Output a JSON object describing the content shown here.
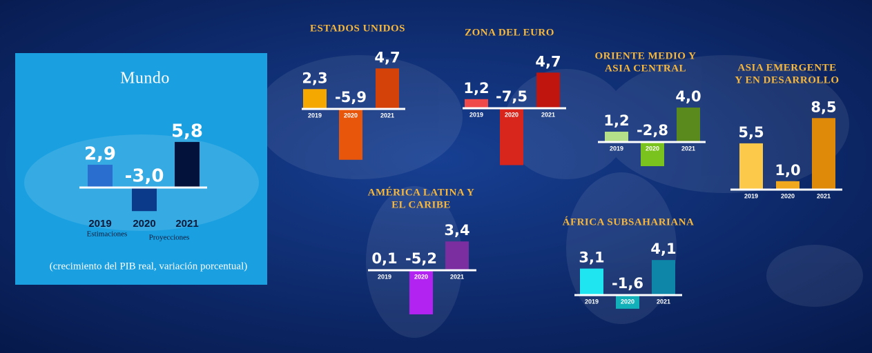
{
  "chart_data": [
    {
      "type": "bar",
      "title": [
        "Mundo"
      ],
      "subtitle": "(crecimiento del PIB real, variación porcentual)",
      "annotations": [
        "Estimaciones",
        "Proyecciones"
      ],
      "categories": [
        "2019",
        "2020",
        "2021"
      ],
      "values": [
        2.9,
        -3.0,
        5.8
      ],
      "value_labels": [
        "2,9",
        "-3,0",
        "5,8"
      ],
      "colors": [
        "#2a6fd0",
        "#0b3a8a",
        "#03123a"
      ]
    },
    {
      "type": "bar",
      "title": [
        "ESTADOS UNIDOS"
      ],
      "categories": [
        "2019",
        "2020",
        "2021"
      ],
      "values": [
        2.3,
        -5.9,
        4.7
      ],
      "value_labels": [
        "2,3",
        "-5,9",
        "4,7"
      ],
      "colors": [
        "#f5a800",
        "#e8560c",
        "#d4420a"
      ]
    },
    {
      "type": "bar",
      "title": [
        "ZONA DEL EURO"
      ],
      "categories": [
        "2019",
        "2020",
        "2021"
      ],
      "values": [
        1.2,
        -7.5,
        4.7
      ],
      "value_labels": [
        "1,2",
        "-7,5",
        "4,7"
      ],
      "colors": [
        "#f04a4a",
        "#d9261c",
        "#c0150f"
      ]
    },
    {
      "type": "bar",
      "title": [
        "ORIENTE MEDIO Y",
        "ASIA CENTRAL"
      ],
      "categories": [
        "2019",
        "2020",
        "2021"
      ],
      "values": [
        1.2,
        -2.8,
        4.0
      ],
      "value_labels": [
        "1,2",
        "-2,8",
        "4,0"
      ],
      "colors": [
        "#b5e08a",
        "#7ac21e",
        "#5a8a1e"
      ]
    },
    {
      "type": "bar",
      "title": [
        "ASIA EMERGENTE",
        "Y EN DESARROLLO"
      ],
      "categories": [
        "2019",
        "2020",
        "2021"
      ],
      "values": [
        5.5,
        1.0,
        8.5
      ],
      "value_labels": [
        "5,5",
        "1,0",
        "8,5"
      ],
      "colors": [
        "#fdc94a",
        "#f0a81e",
        "#e08a0a"
      ]
    },
    {
      "type": "bar",
      "title": [
        "AMÉRICA LATINA Y",
        "EL CARIBE"
      ],
      "categories": [
        "2019",
        "2020",
        "2021"
      ],
      "values": [
        0.1,
        -5.2,
        3.4
      ],
      "value_labels": [
        "0,1",
        "-5,2",
        "3,4"
      ],
      "colors": [
        "#d98af0",
        "#b222f0",
        "#7a2ea0"
      ]
    },
    {
      "type": "bar",
      "title": [
        "ÁFRICA SUBSAHARIANA"
      ],
      "categories": [
        "2019",
        "2020",
        "2021"
      ],
      "values": [
        3.1,
        -1.6,
        4.1
      ],
      "value_labels": [
        "3,1",
        "-1,6",
        "4,1"
      ],
      "colors": [
        "#1ee5f0",
        "#12b0b8",
        "#0e86a8"
      ]
    }
  ]
}
